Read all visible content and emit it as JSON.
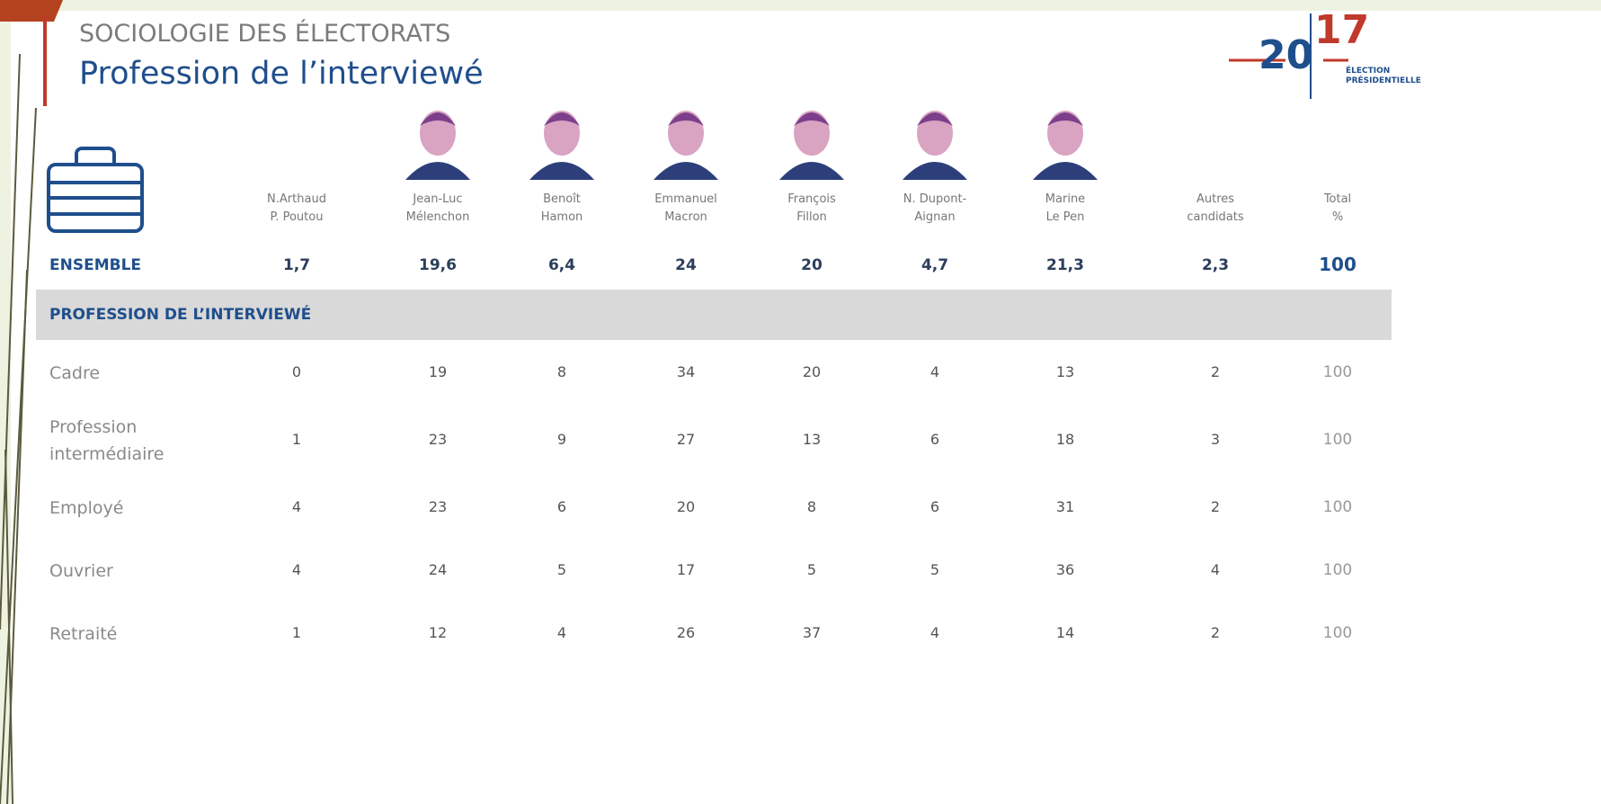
{
  "header": {
    "kicker": "SOCIOLOGIE DES ÉLECTORATS",
    "title": "Profession de l’interviewé"
  },
  "logo": {
    "left": "20",
    "right": "17",
    "line1": "ÉLECTION",
    "line2": "PRÉSIDENTIELLE"
  },
  "table": {
    "columns": [
      {
        "lines": [
          "N.Arthaud",
          "P. Poutou"
        ]
      },
      {
        "lines": [
          "Jean-Luc",
          "Mélenchon"
        ]
      },
      {
        "lines": [
          "Benoît",
          "Hamon"
        ]
      },
      {
        "lines": [
          "Emmanuel",
          "Macron"
        ]
      },
      {
        "lines": [
          "François",
          "Fillon"
        ]
      },
      {
        "lines": [
          "N. Dupont-",
          "Aignan"
        ]
      },
      {
        "lines": [
          "Marine",
          "Le Pen"
        ]
      },
      {
        "lines": [
          "Autres",
          "candidats"
        ]
      },
      {
        "lines": [
          "Total",
          "%"
        ]
      }
    ],
    "ensemble": {
      "label": "ENSEMBLE",
      "values": [
        "1,7",
        "19,6",
        "6,4",
        "24",
        "20",
        "4,7",
        "21,3",
        "2,3",
        "100"
      ]
    },
    "section": "PROFESSION DE L’INTERVIEWÉ",
    "rows": [
      {
        "label": [
          "Cadre"
        ],
        "values": [
          "0",
          "19",
          "8",
          "34",
          "20",
          "4",
          "13",
          "2",
          "100"
        ]
      },
      {
        "label": [
          "Profession",
          "intermédiaire"
        ],
        "values": [
          "1",
          "23",
          "9",
          "27",
          "13",
          "6",
          "18",
          "3",
          "100"
        ]
      },
      {
        "label": [
          "Employé"
        ],
        "values": [
          "4",
          "23",
          "6",
          "20",
          "8",
          "6",
          "31",
          "2",
          "100"
        ]
      },
      {
        "label": [
          "Ouvrier"
        ],
        "values": [
          "4",
          "24",
          "5",
          "17",
          "5",
          "5",
          "36",
          "4",
          "100"
        ]
      },
      {
        "label": [
          "Retraité"
        ],
        "values": [
          "1",
          "12",
          "4",
          "26",
          "37",
          "4",
          "14",
          "2",
          "100"
        ]
      }
    ]
  }
}
